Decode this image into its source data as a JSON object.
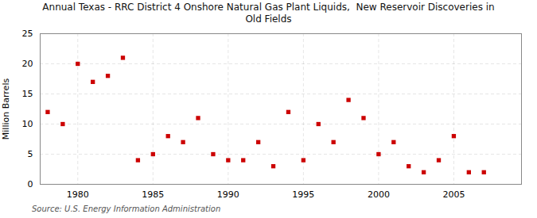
{
  "chart_data": {
    "type": "scatter",
    "title": "Annual Texas - RRC District 4 Onshore Natural Gas Plant Liquids,  New Reservoir Discoveries in\nOld Fields",
    "ylabel": "Million Barrels",
    "source": "Source: U.S. Energy Information Administration",
    "x": [
      1978,
      1979,
      1980,
      1981,
      1982,
      1983,
      1984,
      1985,
      1986,
      1987,
      1988,
      1989,
      1990,
      1991,
      1992,
      1993,
      1994,
      1995,
      1996,
      1997,
      1998,
      1999,
      2000,
      2001,
      2002,
      2003,
      2004,
      2005,
      2006,
      2007,
      2008
    ],
    "values": [
      12,
      10,
      20,
      17,
      18,
      21,
      4,
      5,
      8,
      7,
      11,
      5,
      4,
      4,
      7,
      3,
      12,
      4,
      10,
      7,
      14,
      11,
      5,
      7,
      3,
      2,
      4,
      8,
      2,
      2,
      null
    ],
    "color": "#cc0000",
    "marker": "square",
    "xlim": [
      1977.5,
      2009.5
    ],
    "xticks": [
      1980,
      1985,
      1990,
      1995,
      2000,
      2005
    ],
    "ylim": [
      0,
      25
    ],
    "yticks": [
      0,
      5,
      10,
      15,
      20,
      25
    ],
    "grid": true
  }
}
